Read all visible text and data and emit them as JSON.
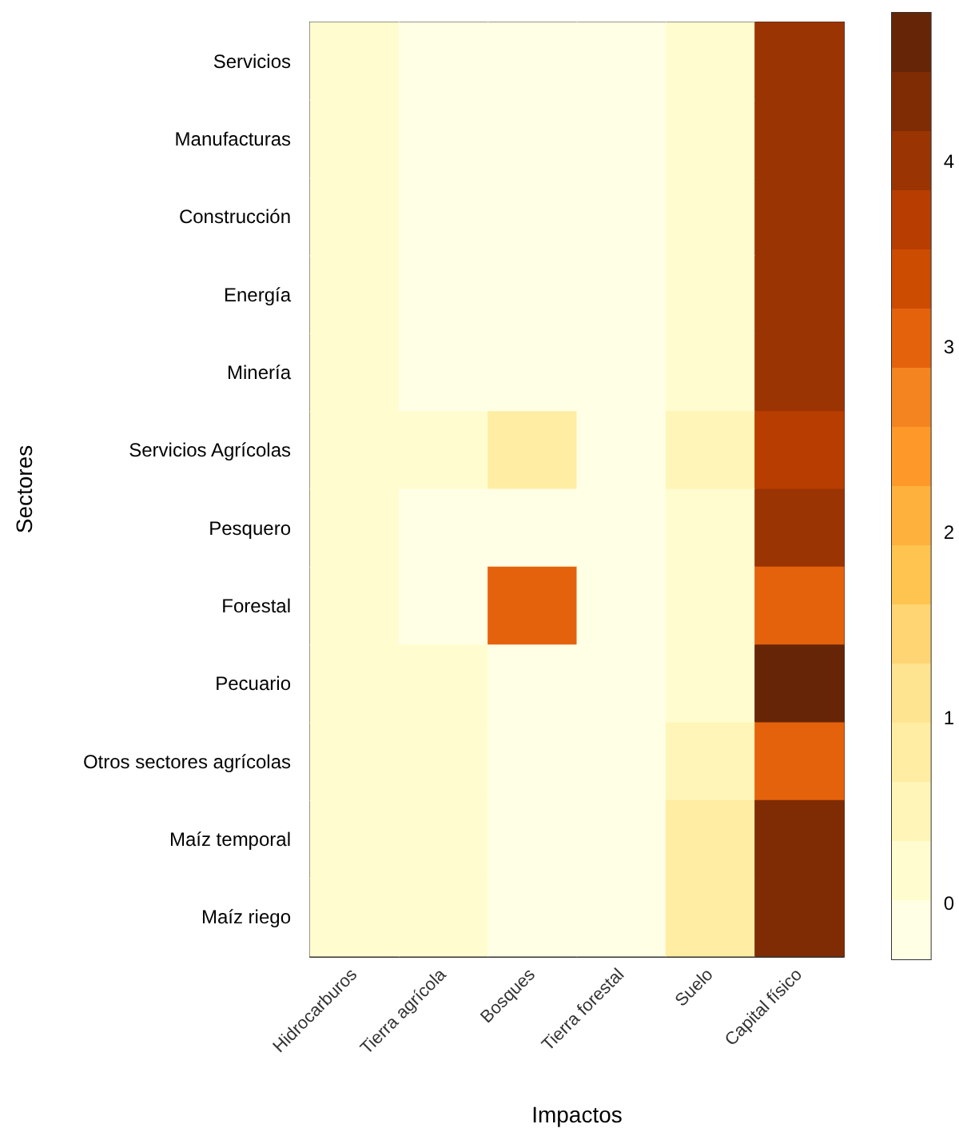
{
  "chart_data": {
    "type": "heatmap",
    "xlabel": "Impactos",
    "ylabel": "Sectores",
    "categories": [
      "Hidrocarburos",
      "Tierra agrícola",
      "Bosques",
      "Tierra forestal",
      "Suelo",
      "Capital físico"
    ],
    "y_categories": [
      "Servicios",
      "Manufacturas",
      "Construcción",
      "Energía",
      "Minería",
      "Servicios Agrícolas",
      "Pesquero",
      "Forestal",
      "Pecuario",
      "Otros sectores agrícolas",
      "Maíz temporal",
      "Maíz riego"
    ],
    "cells": [
      [
        0.2,
        -0.1,
        -0.1,
        -0.1,
        0.2,
        4.0
      ],
      [
        0.2,
        -0.1,
        -0.1,
        -0.1,
        0.2,
        4.0
      ],
      [
        0.2,
        -0.1,
        -0.1,
        -0.1,
        0.2,
        4.0
      ],
      [
        0.2,
        -0.1,
        -0.1,
        -0.1,
        0.2,
        4.0
      ],
      [
        0.2,
        -0.1,
        -0.1,
        -0.1,
        0.2,
        4.0
      ],
      [
        0.2,
        0.2,
        0.9,
        -0.1,
        0.5,
        3.7
      ],
      [
        0.2,
        -0.1,
        -0.1,
        -0.1,
        0.2,
        4.0
      ],
      [
        0.2,
        -0.1,
        3.1,
        -0.1,
        0.2,
        3.1
      ],
      [
        0.2,
        0.2,
        -0.1,
        -0.1,
        0.2,
        4.6
      ],
      [
        0.2,
        0.2,
        -0.1,
        -0.1,
        0.5,
        3.1
      ],
      [
        0.2,
        0.2,
        -0.1,
        -0.1,
        0.9,
        4.3
      ],
      [
        0.2,
        0.2,
        -0.1,
        -0.1,
        0.9,
        4.3
      ]
    ],
    "clim": [
      -0.3,
      4.8
    ],
    "cticks": [
      0,
      1,
      2,
      3,
      4
    ]
  }
}
